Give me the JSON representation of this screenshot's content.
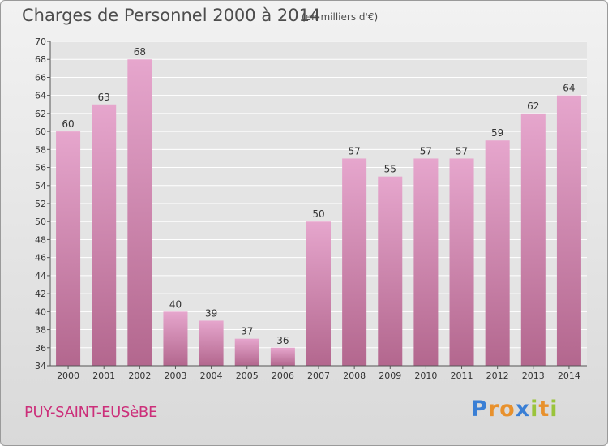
{
  "title": "Charges de Personnel 2000 à 2014",
  "subtitle": "(en milliers d'€)",
  "commune": "PUY-SAINT-EUSèBE",
  "logo": {
    "text": "Proxiti",
    "letter_colors": [
      "#3a7fd5",
      "#e8912d",
      "#e8912d",
      "#3a7fd5",
      "#9ac43b",
      "#e8912d",
      "#9ac43b"
    ]
  },
  "colors": {
    "bar_top": "#e6a6cd",
    "bar_bottom": "#b3678e",
    "plot_bg": "#e4e4e4",
    "grid": "#ffffff",
    "commune": "#cc2f7a"
  },
  "chart_data": {
    "type": "bar",
    "title": "Charges de Personnel 2000 à 2014",
    "subtitle": "(en milliers d'€)",
    "categories": [
      "2000",
      "2001",
      "2002",
      "2003",
      "2004",
      "2005",
      "2006",
      "2007",
      "2008",
      "2009",
      "2010",
      "2011",
      "2012",
      "2013",
      "2014"
    ],
    "values": [
      60,
      63,
      68,
      40,
      39,
      37,
      36,
      50,
      57,
      55,
      57,
      57,
      59,
      62,
      64
    ],
    "ylim": [
      34,
      70
    ],
    "ytick_step": 2,
    "grid": true,
    "data_labels": true
  }
}
